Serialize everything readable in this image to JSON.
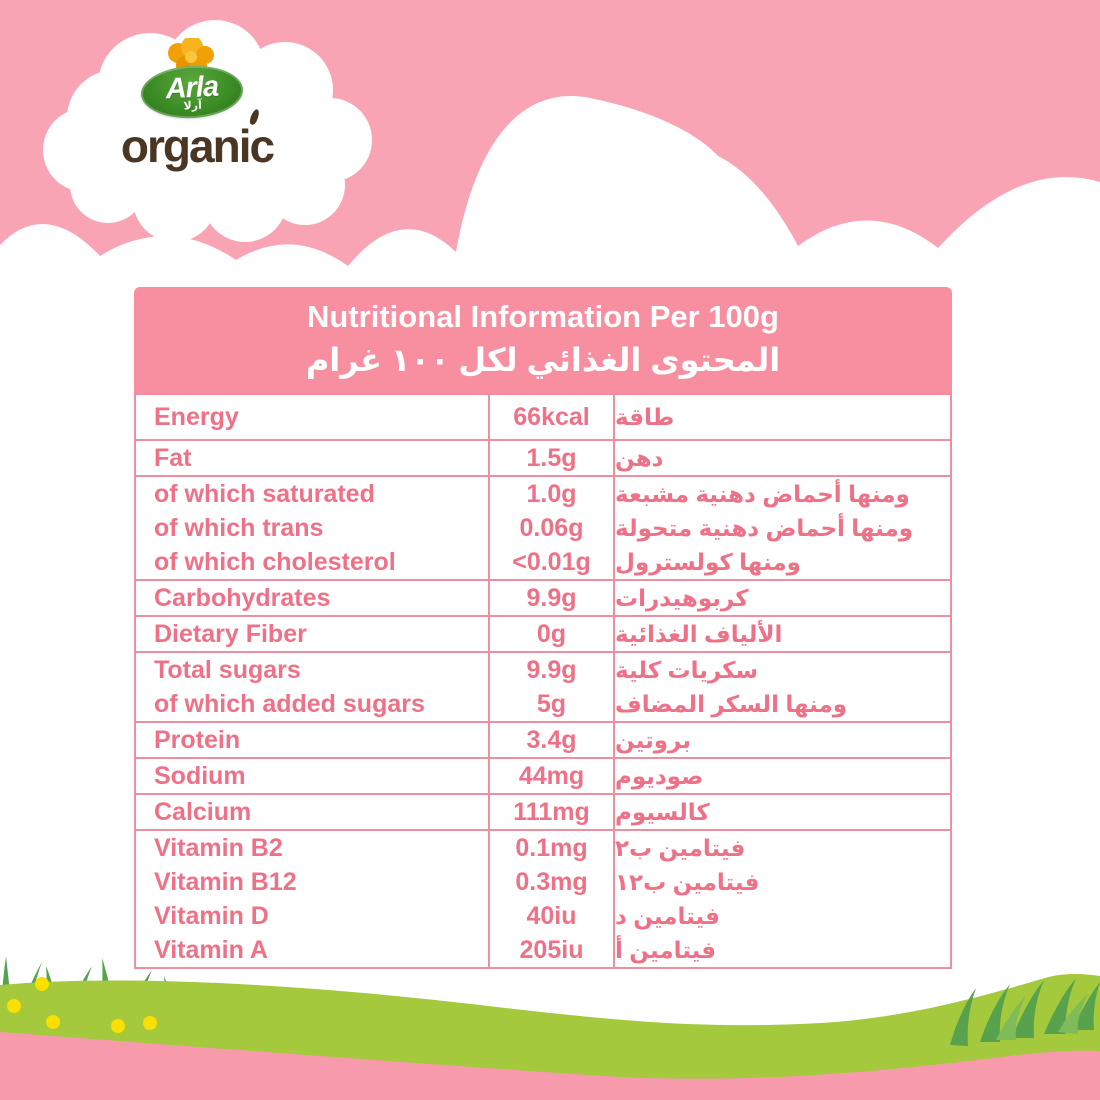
{
  "logo": {
    "brand": "Arla",
    "brand_ar": "آرلا",
    "registered_mark": "®",
    "wordmark": "organic"
  },
  "table": {
    "title_en": "Nutritional Information Per 100g",
    "title_ar": "المحتوى الغذائي لكل ١٠٠ غرام",
    "columns": [
      "nutrient_en",
      "value_per_100g",
      "nutrient_ar"
    ],
    "groups": [
      {
        "lines": [
          {
            "en": "Energy",
            "value": "66kcal",
            "ar": "طاقة"
          }
        ]
      },
      {
        "lines": [
          {
            "en": "Fat",
            "value": "1.5g",
            "ar": "دهن"
          }
        ]
      },
      {
        "lines": [
          {
            "en": "of which saturated",
            "value": "1.0g",
            "ar": "ومنها أحماض دهنية مشبعة"
          },
          {
            "en": "of which trans",
            "value": "0.06g",
            "ar": "ومنها أحماض دهنية متحولة"
          },
          {
            "en": "of which cholesterol",
            "value": "<0.01g",
            "ar": "ومنها كولسترول"
          }
        ]
      },
      {
        "lines": [
          {
            "en": "Carbohydrates",
            "value": "9.9g",
            "ar": "كربوهيدرات"
          }
        ]
      },
      {
        "lines": [
          {
            "en": "Dietary Fiber",
            "value": "0g",
            "ar": "الألياف الغذائية"
          }
        ]
      },
      {
        "lines": [
          {
            "en": "Total sugars",
            "value": "9.9g",
            "ar": "سكريات كلية"
          },
          {
            "en": "of which added sugars",
            "value": "5g",
            "ar": "ومنها السكر المضاف"
          }
        ]
      },
      {
        "lines": [
          {
            "en": "Protein",
            "value": "3.4g",
            "ar": "بروتين"
          }
        ]
      },
      {
        "lines": [
          {
            "en": "Sodium",
            "value": "44mg",
            "ar": "صوديوم"
          }
        ]
      },
      {
        "lines": [
          {
            "en": "Calcium",
            "value": "111mg",
            "ar": "كالسيوم"
          }
        ]
      },
      {
        "lines": [
          {
            "en": "Vitamin B2",
            "value": "0.1mg",
            "ar": "فيتامين ب٢"
          },
          {
            "en": "Vitamin B12",
            "value": "0.3mg",
            "ar": "فيتامين ب١٢"
          },
          {
            "en": "Vitamin D",
            "value": "40iu",
            "ar": "فيتامين د"
          },
          {
            "en": "Vitamin A",
            "value": "205iu",
            "ar": "فيتامين أ"
          }
        ]
      }
    ]
  },
  "colors": {
    "sky_pink": "#F9A4B4",
    "header_pink": "#F78FA1",
    "table_border_pink": "#EE8FA0",
    "table_text_pink": "#EE7187",
    "cloud_white": "#FFFFFF",
    "grass_green": "#A5C93C",
    "blade_green": "#55A34E",
    "bottom_band_pink": "#F79BAC",
    "organic_brown": "#4B3623",
    "arla_green": "#2E7A1E",
    "flower_orange": "#F2A007",
    "dot_yellow": "#FADF00"
  }
}
